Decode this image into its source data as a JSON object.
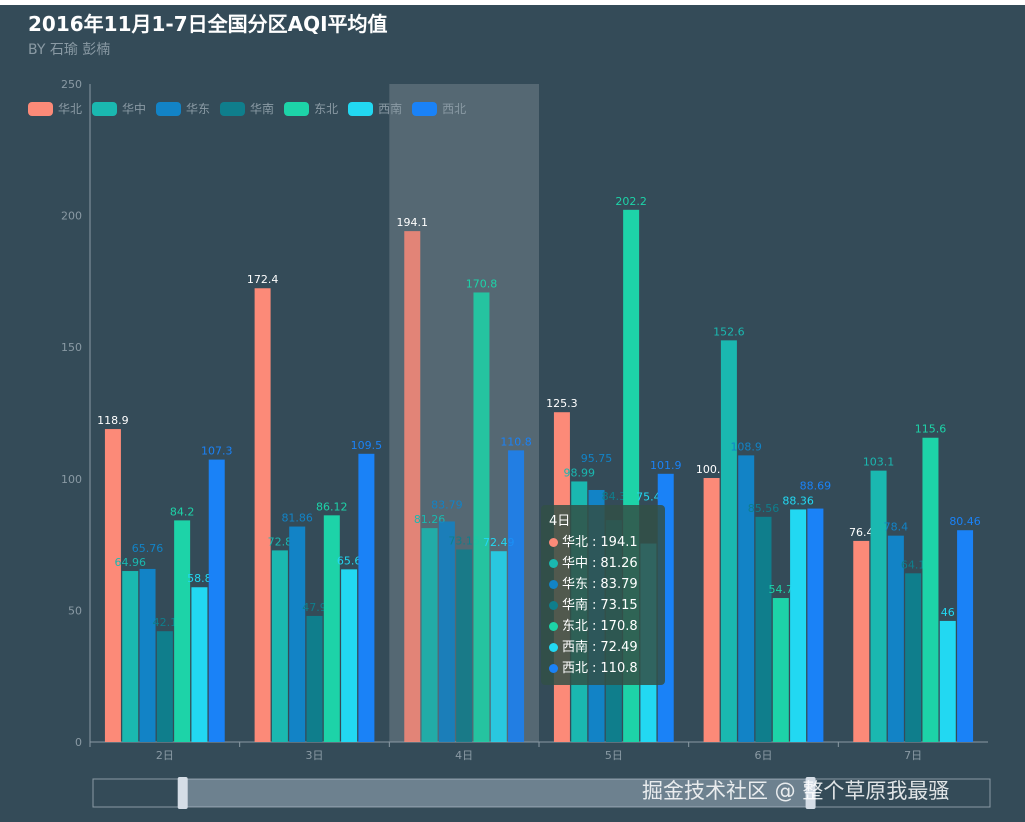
{
  "watermark": "掘金技术社区 @ 整个草原我最骚",
  "chart_data": {
    "type": "bar",
    "title": "2016年11月1-7日全国分区AQI平均值",
    "subtitle": "BY 石瑜 彭楠",
    "categories": [
      "2日",
      "3日",
      "4日",
      "5日",
      "6日",
      "7日"
    ],
    "ylim": [
      0,
      250
    ],
    "yticks": [
      0,
      50,
      100,
      150,
      200,
      250
    ],
    "legend_position": "top-left",
    "grid": false,
    "highlighted_category": "4日",
    "series": [
      {
        "name": "华北",
        "color": "#fc8a78",
        "values": [
          118.9,
          172.4,
          194.1,
          125.3,
          100.3,
          76.4
        ]
      },
      {
        "name": "华中",
        "color": "#1ab8b0",
        "values": [
          64.96,
          72.8,
          81.26,
          98.99,
          152.6,
          103.1
        ]
      },
      {
        "name": "华东",
        "color": "#1283c6",
        "values": [
          65.76,
          81.86,
          83.79,
          95.75,
          108.9,
          78.4
        ]
      },
      {
        "name": "华南",
        "color": "#0f7e8c",
        "values": [
          42.1,
          47.9,
          73.15,
          84.3,
          85.56,
          64.1
        ]
      },
      {
        "name": "东北",
        "color": "#1dd3a8",
        "values": [
          84.2,
          86.12,
          170.8,
          202.2,
          54.7,
          115.6
        ]
      },
      {
        "name": "西南",
        "color": "#22d8f2",
        "values": [
          58.8,
          65.6,
          72.49,
          75.4,
          88.36,
          46.0
        ]
      },
      {
        "name": "西北",
        "color": "#1a82f7",
        "values": [
          107.3,
          109.5,
          110.8,
          101.9,
          88.69,
          80.46
        ]
      }
    ],
    "label_colors": [
      "#ffffff",
      "#1ab8b0",
      "#1283c6",
      "#0f7e8c",
      "#1dd3a8",
      "#22d8f2",
      "#1a82f7"
    ],
    "tooltip": {
      "title": "4日",
      "rows": [
        {
          "name": "华北",
          "value": "194.1"
        },
        {
          "name": "华中",
          "value": "81.26"
        },
        {
          "name": "华东",
          "value": "83.79"
        },
        {
          "name": "华南",
          "value": "73.15"
        },
        {
          "name": "东北",
          "value": "170.8"
        },
        {
          "name": "西南",
          "value": "72.49"
        },
        {
          "name": "西北",
          "value": "110.8"
        }
      ]
    },
    "datazoom": {
      "start_percent": 10,
      "end_percent": 80
    }
  }
}
